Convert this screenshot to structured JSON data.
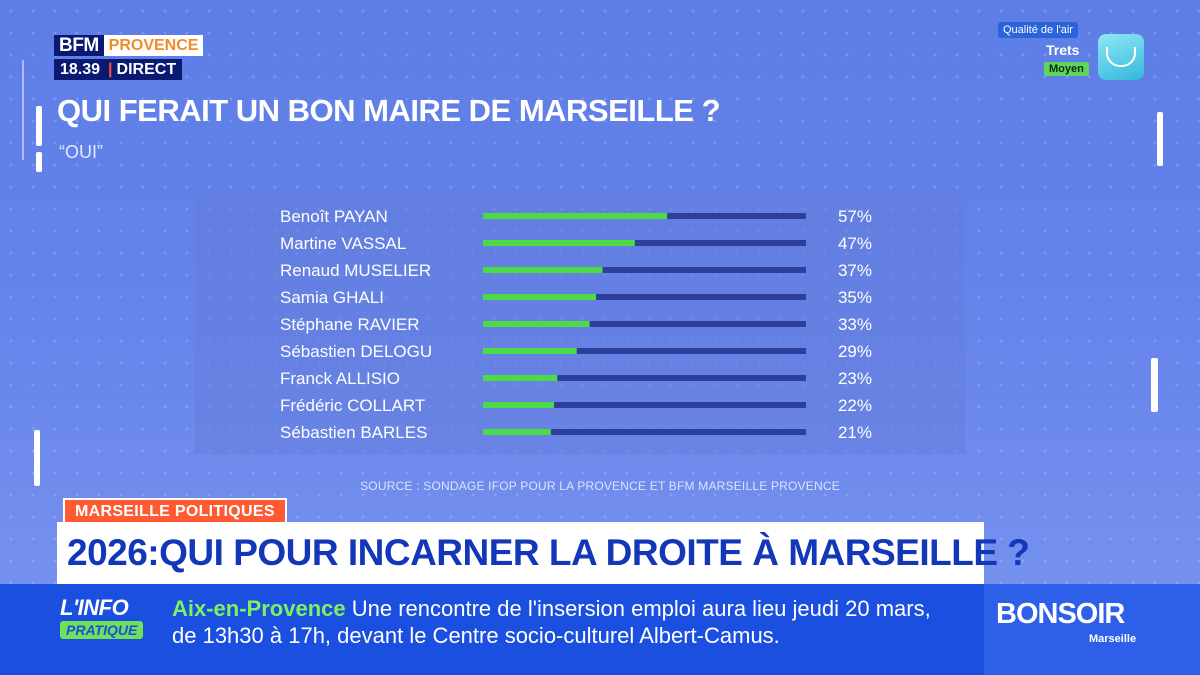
{
  "header": {
    "brand": "BFM",
    "region": "PROVENCE",
    "time": "18.39",
    "separator": "|",
    "live": "DIRECT"
  },
  "air_quality": {
    "title": "Qualité de l'air",
    "city": "Trets",
    "level": "Moyen"
  },
  "chart_data": {
    "type": "bar",
    "orientation": "horizontal",
    "title": "QUI FERAIT UN BON MAIRE DE MARSEILLE ?",
    "subtitle": "“OUI”",
    "categories": [
      "Benoît PAYAN",
      "Martine VASSAL",
      "Renaud MUSELIER",
      "Samia GHALI",
      "Stéphane RAVIER",
      "Sébastien DELOGU",
      "Franck ALLISIO",
      "Frédéric COLLART",
      "Sébastien BARLES"
    ],
    "values": [
      57,
      47,
      37,
      35,
      33,
      29,
      23,
      22,
      21
    ],
    "value_labels": [
      "57%",
      "47%",
      "37%",
      "35%",
      "33%",
      "29%",
      "23%",
      "22%",
      "21%"
    ],
    "xlim": [
      0,
      100
    ],
    "bar_color": "#4bdc45",
    "track_color": "#2c3f9a",
    "grid": false,
    "source": "SOURCE : SONDAGE IFOP POUR LA PROVENCE ET BFM MARSEILLE PROVENCE"
  },
  "lower_third": {
    "tag": "MARSEILLE POLITIQUES",
    "headline": "2026:QUI POUR INCARNER LA DROITE À MARSEILLE ?"
  },
  "ticker": {
    "logo_main": "L'INFO",
    "logo_sub": "PRATIQUE",
    "place": "Aix-en-Provence",
    "line1": "Une rencontre de l'insersion emploi aura lieu jeudi 20 mars,",
    "line2": "de 13h30 à 17h, devant le Centre socio-culturel Albert-Camus."
  },
  "show": {
    "name": "BONSOIR",
    "sub": "Marseille"
  }
}
